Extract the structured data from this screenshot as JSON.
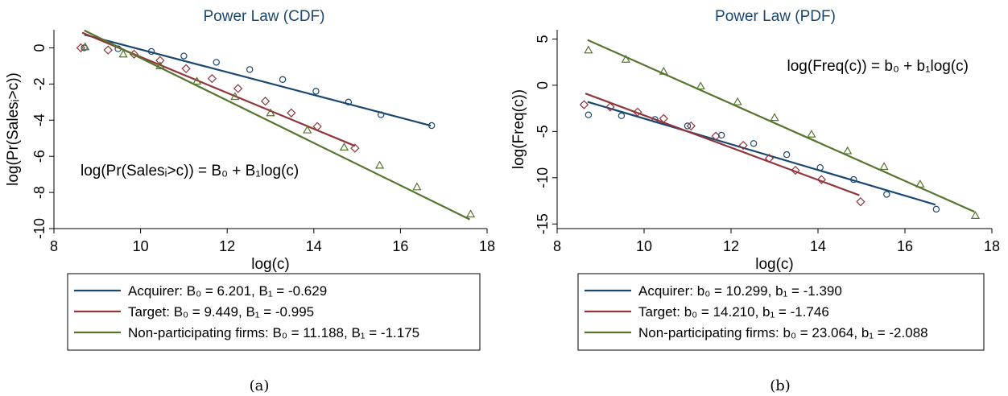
{
  "chart_data": [
    {
      "type": "scatter",
      "panel_label": "(a)",
      "title": "Power Law (CDF)",
      "xlabel": "log(c)",
      "ylabel": "log(Pr(Salesᵢ>c))",
      "xlim": [
        8,
        18
      ],
      "ylim": [
        -10,
        1
      ],
      "xticks": [
        8,
        10,
        12,
        14,
        16,
        18
      ],
      "yticks": [
        0,
        -2,
        -4,
        -6,
        -8,
        -10
      ],
      "xtick_labels": [
        "8",
        "10",
        "12",
        "14",
        "16",
        "18"
      ],
      "ytick_labels": [
        "0",
        "-2",
        "-4",
        "-6",
        "-8",
        "-10"
      ],
      "grid": false,
      "legend_position": "bottom",
      "annotation": "log(Pr(Salesᵢ>c)) = B₀ + B₁log(c)",
      "series": [
        {
          "name": "Acquirer: B₀ = 6.201, B₁ = -0.629",
          "color": "#1a476f",
          "marker": "circle",
          "intercept": 6.201,
          "slope": -0.629,
          "fit_x": [
            8.7,
            16.7
          ],
          "points": [
            [
              8.7,
              0.0
            ],
            [
              9.48,
              -0.05
            ],
            [
              10.25,
              -0.2
            ],
            [
              11.0,
              -0.45
            ],
            [
              11.75,
              -0.8
            ],
            [
              12.52,
              -1.2
            ],
            [
              13.28,
              -1.75
            ],
            [
              14.05,
              -2.4
            ],
            [
              14.8,
              -3.0
            ],
            [
              15.55,
              -3.7
            ],
            [
              16.72,
              -4.3
            ]
          ]
        },
        {
          "name": "Target: B₀ = 9.449, B₁ = -0.995",
          "color": "#90353b",
          "marker": "diamond",
          "intercept": 9.449,
          "slope": -0.995,
          "fit_x": [
            8.65,
            14.95
          ],
          "points": [
            [
              8.62,
              0.0
            ],
            [
              9.25,
              -0.12
            ],
            [
              9.85,
              -0.35
            ],
            [
              10.45,
              -0.7
            ],
            [
              11.05,
              -1.15
            ],
            [
              11.65,
              -1.7
            ],
            [
              12.25,
              -2.25
            ],
            [
              12.88,
              -2.95
            ],
            [
              13.48,
              -3.6
            ],
            [
              14.08,
              -4.35
            ],
            [
              14.95,
              -5.55
            ]
          ]
        },
        {
          "name": "Non-participating firms: B₀ = 11.188, B₁ = -1.175",
          "color": "#55752f",
          "marker": "triangle",
          "intercept": 11.188,
          "slope": -1.175,
          "fit_x": [
            8.7,
            17.6
          ],
          "points": [
            [
              8.72,
              0.05
            ],
            [
              9.6,
              -0.35
            ],
            [
              10.45,
              -1.0
            ],
            [
              11.3,
              -1.85
            ],
            [
              12.18,
              -2.7
            ],
            [
              13.0,
              -3.6
            ],
            [
              13.85,
              -4.55
            ],
            [
              14.7,
              -5.5
            ],
            [
              15.52,
              -6.5
            ],
            [
              16.38,
              -7.7
            ],
            [
              17.62,
              -9.2
            ]
          ]
        }
      ]
    },
    {
      "type": "scatter",
      "panel_label": "(b)",
      "title": "Power Law (PDF)",
      "xlabel": "log(c)",
      "ylabel": "log(Freq(c))",
      "xlim": [
        8,
        18
      ],
      "ylim": [
        -15.5,
        6
      ],
      "xticks": [
        8,
        10,
        12,
        14,
        16,
        18
      ],
      "yticks": [
        5,
        0,
        -5,
        -10,
        -15
      ],
      "xtick_labels": [
        "8",
        "10",
        "12",
        "14",
        "16",
        "18"
      ],
      "ytick_labels": [
        "5",
        "0",
        "-5",
        "-10",
        "-15"
      ],
      "grid": false,
      "legend_position": "bottom",
      "annotation": "log(Freq(c)) = b₀ + b₁log(c)",
      "series": [
        {
          "name": "Acquirer: b₀ = 10.299, b₁ = -1.390",
          "color": "#1a476f",
          "marker": "circle",
          "intercept": 10.299,
          "slope": -1.39,
          "fit_x": [
            8.7,
            16.7
          ],
          "points": [
            [
              8.72,
              -3.2
            ],
            [
              9.48,
              -3.3
            ],
            [
              10.25,
              -3.7
            ],
            [
              11.0,
              -4.4
            ],
            [
              11.78,
              -5.4
            ],
            [
              12.52,
              -6.3
            ],
            [
              13.28,
              -7.5
            ],
            [
              14.05,
              -8.9
            ],
            [
              14.82,
              -10.2
            ],
            [
              15.58,
              -11.8
            ],
            [
              16.72,
              -13.4
            ]
          ]
        },
        {
          "name": "Target: b₀ = 14.210, b₁ = -1.746",
          "color": "#90353b",
          "marker": "diamond",
          "intercept": 14.21,
          "slope": -1.746,
          "fit_x": [
            8.65,
            14.95
          ],
          "points": [
            [
              8.62,
              -2.1
            ],
            [
              9.22,
              -2.35
            ],
            [
              9.85,
              -2.9
            ],
            [
              10.45,
              -3.6
            ],
            [
              11.08,
              -4.4
            ],
            [
              11.65,
              -5.5
            ],
            [
              12.28,
              -6.5
            ],
            [
              12.88,
              -7.9
            ],
            [
              13.48,
              -9.2
            ],
            [
              14.08,
              -10.2
            ],
            [
              14.98,
              -12.6
            ]
          ]
        },
        {
          "name": "Non-participating firms: b₀ = 23.064, b₁ = -2.088",
          "color": "#55752f",
          "marker": "triangle",
          "intercept": 23.064,
          "slope": -2.088,
          "fit_x": [
            8.7,
            17.6
          ],
          "points": [
            [
              8.72,
              3.8
            ],
            [
              9.58,
              2.8
            ],
            [
              10.45,
              1.5
            ],
            [
              11.3,
              -0.1
            ],
            [
              12.15,
              -1.8
            ],
            [
              13.0,
              -3.5
            ],
            [
              13.85,
              -5.3
            ],
            [
              14.68,
              -7.1
            ],
            [
              15.52,
              -8.8
            ],
            [
              16.35,
              -10.7
            ],
            [
              17.62,
              -14.1
            ]
          ]
        }
      ]
    }
  ]
}
